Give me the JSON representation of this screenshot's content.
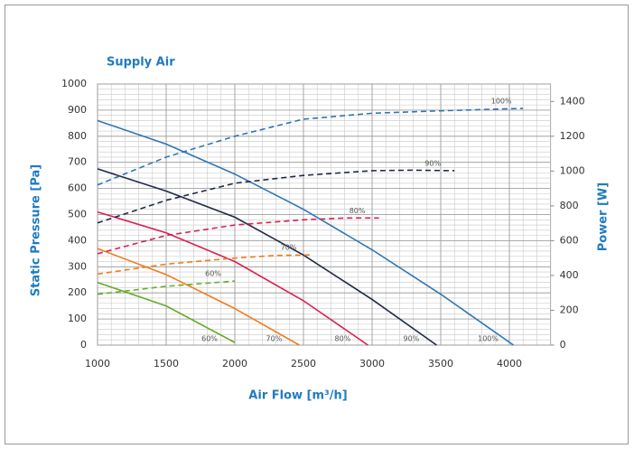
{
  "chart_data": {
    "type": "line",
    "title": "Supply Air",
    "xlabel": "Air Flow [m³/h]",
    "ylabel": "Static Pressure [Pa]",
    "y2label": "Power [W]",
    "xlim": [
      1000,
      4300
    ],
    "ylim": [
      0,
      1000
    ],
    "y2lim": [
      0,
      1500
    ],
    "xticks": [
      1000,
      1500,
      2000,
      2500,
      3000,
      3500,
      4000
    ],
    "yticks": [
      0,
      100,
      200,
      300,
      400,
      500,
      600,
      700,
      800,
      900,
      1000
    ],
    "y2ticks": [
      0,
      200,
      400,
      600,
      800,
      1000,
      1200,
      1400
    ],
    "grid": true,
    "minor_grid": {
      "x": 100,
      "y": 20
    },
    "series": [
      {
        "name": "100%",
        "color": "#2f75b5",
        "style": "solid",
        "x": [
          1000,
          1500,
          2000,
          2500,
          3000,
          3500,
          4030
        ],
        "values": [
          860,
          770,
          655,
          520,
          365,
          195,
          0
        ]
      },
      {
        "name": "90%",
        "color": "#1f2b45",
        "style": "solid",
        "x": [
          1000,
          1500,
          2000,
          2500,
          3000,
          3470
        ],
        "values": [
          675,
          590,
          490,
          345,
          175,
          0
        ]
      },
      {
        "name": "80%",
        "color": "#d92150",
        "style": "solid",
        "x": [
          1000,
          1500,
          2000,
          2500,
          2970
        ],
        "values": [
          510,
          430,
          320,
          170,
          0
        ]
      },
      {
        "name": "70%",
        "color": "#f07c1a",
        "style": "solid",
        "x": [
          1000,
          1500,
          2000,
          2470
        ],
        "values": [
          370,
          270,
          140,
          0
        ]
      },
      {
        "name": "60%",
        "color": "#66ad2a",
        "style": "solid",
        "x": [
          1000,
          1500,
          2000
        ],
        "values": [
          240,
          150,
          10
        ]
      },
      {
        "name": "100%",
        "color": "#2f75b5",
        "style": "dashed",
        "axis": "y2",
        "x": [
          1000,
          1500,
          2000,
          2500,
          3000,
          3500,
          4000,
          4100
        ],
        "values": [
          920,
          1080,
          1200,
          1298,
          1332,
          1346,
          1358,
          1360
        ]
      },
      {
        "name": "90%",
        "color": "#1f2b45",
        "style": "dashed",
        "axis": "y2",
        "x": [
          1000,
          1500,
          2000,
          2500,
          3000,
          3300,
          3600
        ],
        "values": [
          702,
          832,
          930,
          975,
          1002,
          1005,
          1002
        ]
      },
      {
        "name": "80%",
        "color": "#d92150",
        "style": "dashed",
        "axis": "y2",
        "x": [
          1000,
          1500,
          2000,
          2500,
          2800,
          3050
        ],
        "values": [
          525,
          630,
          690,
          720,
          730,
          730
        ]
      },
      {
        "name": "70%",
        "color": "#f07c1a",
        "style": "dashed",
        "axis": "y2",
        "x": [
          1000,
          1500,
          2000,
          2300,
          2550
        ],
        "values": [
          408,
          465,
          500,
          515,
          518
        ]
      },
      {
        "name": "60%",
        "color": "#66ad2a",
        "style": "dashed",
        "axis": "y2",
        "x": [
          1000,
          1500,
          2000
        ],
        "values": [
          292,
          338,
          368
        ]
      }
    ]
  }
}
